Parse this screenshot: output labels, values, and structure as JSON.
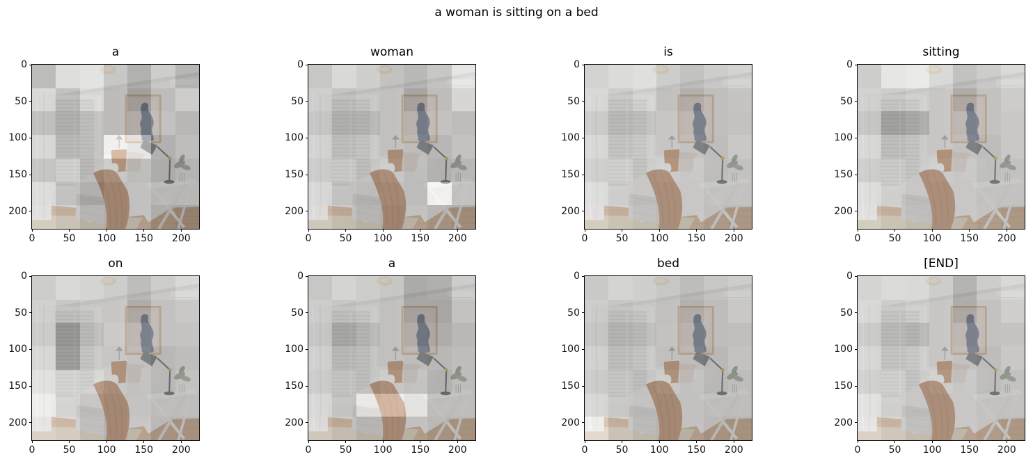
{
  "figure": {
    "suptitle": "a woman is sitting on a bed",
    "background_color": "#ffffff",
    "axis_color": "#000000"
  },
  "chart_data": {
    "type": "heatmap",
    "title": "a woman is sitting on a bed",
    "subplot_grid": [
      2,
      4
    ],
    "tokens": [
      "a",
      "woman",
      "is",
      "sitting",
      "on",
      "a",
      "bed",
      "[END]"
    ],
    "x_ticks": [
      "0",
      "50",
      "100",
      "150",
      "200"
    ],
    "y_ticks": [
      "0",
      "50",
      "100",
      "150",
      "200"
    ],
    "x_range": [
      0,
      224
    ],
    "y_range": [
      0,
      224
    ],
    "grid": false,
    "attention_grid_size": [
      7,
      7
    ],
    "overlay": {
      "alpha": 0.55,
      "gray_min": 50,
      "gray_max": 255
    },
    "attention_maps": [
      [
        [
          0.45,
          0.75,
          0.8,
          0.55,
          0.35,
          0.6,
          0.4
        ],
        [
          0.7,
          0.5,
          0.75,
          0.5,
          0.25,
          0.5,
          0.65
        ],
        [
          0.5,
          0.42,
          0.55,
          0.5,
          0.4,
          0.55,
          0.45
        ],
        [
          0.7,
          0.5,
          0.55,
          0.97,
          0.88,
          0.4,
          0.5
        ],
        [
          0.55,
          0.7,
          0.5,
          0.6,
          0.5,
          0.35,
          0.42
        ],
        [
          0.75,
          0.55,
          0.4,
          0.5,
          0.55,
          0.45,
          0.45
        ],
        [
          0.8,
          0.7,
          0.55,
          0.5,
          0.55,
          0.35,
          0.3
        ]
      ],
      [
        [
          0.55,
          0.7,
          0.62,
          0.5,
          0.42,
          0.55,
          0.82
        ],
        [
          0.62,
          0.52,
          0.58,
          0.55,
          0.3,
          0.5,
          0.72
        ],
        [
          0.55,
          0.42,
          0.45,
          0.55,
          0.45,
          0.55,
          0.5
        ],
        [
          0.66,
          0.55,
          0.6,
          0.55,
          0.5,
          0.45,
          0.55
        ],
        [
          0.6,
          0.65,
          0.55,
          0.6,
          0.5,
          0.4,
          0.46
        ],
        [
          0.7,
          0.55,
          0.5,
          0.55,
          0.5,
          0.95,
          0.55
        ],
        [
          0.75,
          0.65,
          0.55,
          0.5,
          0.55,
          0.45,
          0.4
        ]
      ],
      [
        [
          0.65,
          0.72,
          0.76,
          0.6,
          0.5,
          0.6,
          0.66
        ],
        [
          0.7,
          0.6,
          0.7,
          0.55,
          0.4,
          0.52,
          0.56
        ],
        [
          0.6,
          0.5,
          0.55,
          0.6,
          0.5,
          0.52,
          0.55
        ],
        [
          0.7,
          0.6,
          0.65,
          0.6,
          0.55,
          0.5,
          0.6
        ],
        [
          0.64,
          0.7,
          0.6,
          0.64,
          0.6,
          0.5,
          0.55
        ],
        [
          0.76,
          0.65,
          0.6,
          0.6,
          0.6,
          0.55,
          0.55
        ],
        [
          0.8,
          0.7,
          0.65,
          0.6,
          0.6,
          0.52,
          0.5
        ]
      ],
      [
        [
          0.6,
          0.82,
          0.86,
          0.7,
          0.5,
          0.6,
          0.7
        ],
        [
          0.65,
          0.6,
          0.66,
          0.6,
          0.36,
          0.55,
          0.64
        ],
        [
          0.55,
          0.3,
          0.36,
          0.6,
          0.5,
          0.55,
          0.6
        ],
        [
          0.7,
          0.55,
          0.6,
          0.6,
          0.55,
          0.5,
          0.6
        ],
        [
          0.62,
          0.66,
          0.6,
          0.64,
          0.6,
          0.52,
          0.55
        ],
        [
          0.76,
          0.66,
          0.6,
          0.6,
          0.6,
          0.55,
          0.55
        ],
        [
          0.8,
          0.7,
          0.64,
          0.6,
          0.6,
          0.55,
          0.5
        ]
      ],
      [
        [
          0.6,
          0.7,
          0.66,
          0.6,
          0.46,
          0.6,
          0.7
        ],
        [
          0.64,
          0.55,
          0.6,
          0.6,
          0.36,
          0.55,
          0.6
        ],
        [
          0.6,
          0.2,
          0.5,
          0.64,
          0.5,
          0.55,
          0.56
        ],
        [
          0.7,
          0.26,
          0.6,
          0.6,
          0.55,
          0.46,
          0.5
        ],
        [
          0.8,
          0.74,
          0.7,
          0.6,
          0.55,
          0.46,
          0.55
        ],
        [
          0.9,
          0.7,
          0.6,
          0.55,
          0.56,
          0.5,
          0.5
        ],
        [
          0.85,
          0.8,
          0.64,
          0.55,
          0.6,
          0.46,
          0.45
        ]
      ],
      [
        [
          0.55,
          0.66,
          0.6,
          0.55,
          0.3,
          0.34,
          0.6
        ],
        [
          0.6,
          0.55,
          0.6,
          0.55,
          0.3,
          0.3,
          0.55
        ],
        [
          0.55,
          0.34,
          0.46,
          0.55,
          0.4,
          0.36,
          0.46
        ],
        [
          0.64,
          0.5,
          0.55,
          0.55,
          0.5,
          0.46,
          0.5
        ],
        [
          0.6,
          0.6,
          0.55,
          0.6,
          0.55,
          0.4,
          0.5
        ],
        [
          0.7,
          0.56,
          0.9,
          0.96,
          0.85,
          0.5,
          0.5
        ],
        [
          0.75,
          0.65,
          0.55,
          0.55,
          0.55,
          0.46,
          0.45
        ]
      ],
      [
        [
          0.56,
          0.66,
          0.62,
          0.55,
          0.46,
          0.55,
          0.6
        ],
        [
          0.6,
          0.55,
          0.6,
          0.55,
          0.4,
          0.5,
          0.6
        ],
        [
          0.55,
          0.46,
          0.5,
          0.56,
          0.46,
          0.5,
          0.52
        ],
        [
          0.65,
          0.55,
          0.6,
          0.55,
          0.5,
          0.46,
          0.55
        ],
        [
          0.6,
          0.62,
          0.55,
          0.6,
          0.55,
          0.46,
          0.5
        ],
        [
          0.7,
          0.6,
          0.56,
          0.55,
          0.55,
          0.5,
          0.5
        ],
        [
          0.92,
          0.7,
          0.6,
          0.55,
          0.55,
          0.46,
          0.45
        ]
      ],
      [
        [
          0.66,
          0.72,
          0.7,
          0.6,
          0.38,
          0.6,
          0.7
        ],
        [
          0.7,
          0.6,
          0.66,
          0.6,
          0.36,
          0.55,
          0.66
        ],
        [
          0.6,
          0.5,
          0.46,
          0.6,
          0.5,
          0.55,
          0.56
        ],
        [
          0.7,
          0.6,
          0.65,
          0.6,
          0.55,
          0.5,
          0.6
        ],
        [
          0.65,
          0.7,
          0.6,
          0.65,
          0.6,
          0.5,
          0.55
        ],
        [
          0.8,
          0.66,
          0.6,
          0.6,
          0.6,
          0.55,
          0.55
        ],
        [
          0.85,
          0.75,
          0.65,
          0.6,
          0.6,
          0.55,
          0.5
        ]
      ]
    ]
  },
  "scene_palette": {
    "wall": "#e6e4e0",
    "ceiling": "#f4f3f1",
    "floor_wood": "#c2966a",
    "rug": "#d2c1a2",
    "duvet": "#e8e6e2",
    "throw_rust": "#a7693a",
    "pillow_rust": "#b06f3e",
    "frame_wood": "#c8a478",
    "art_mat": "#e9d8cd",
    "art_figure": "#4b5a74",
    "lamp": "#45474a",
    "table": "#f4f3f1",
    "curtain": "#f2f1ef",
    "blinds": "#c9c7c3",
    "plant": "#7e8a76"
  }
}
